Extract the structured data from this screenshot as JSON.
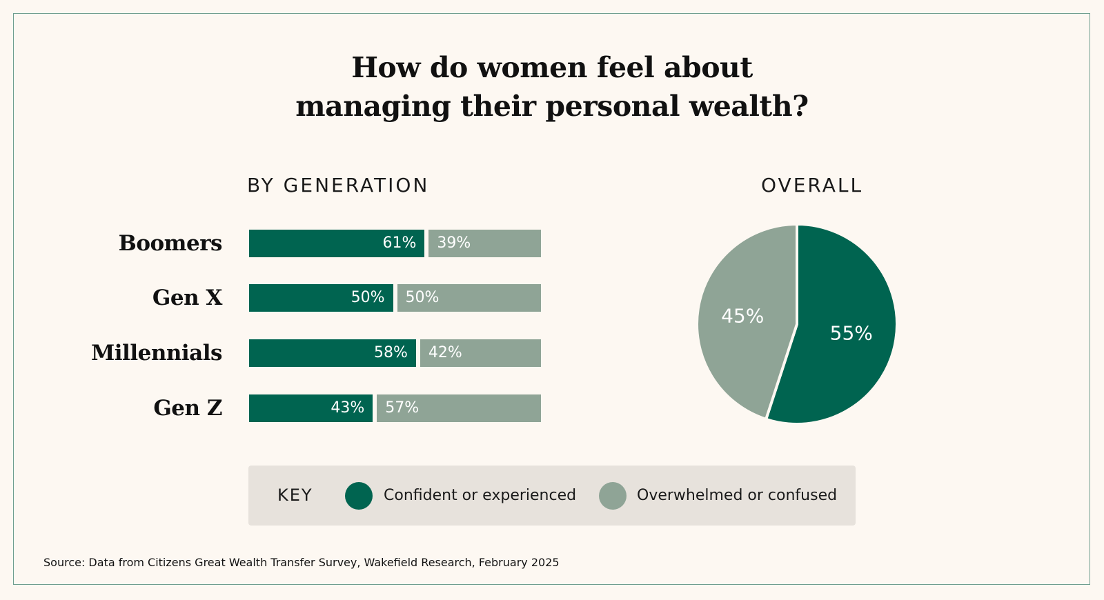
{
  "title_lines": [
    "How do women feel about",
    "managing their personal wealth?"
  ],
  "sections": {
    "by_generation": "BY GENERATION",
    "overall": "OVERALL"
  },
  "colors": {
    "confident": "#006450",
    "overwhelmed": "#8fa496",
    "frame": "#6f9e8f",
    "key_bg": "#e7e2dc",
    "background": "#fdf8f2"
  },
  "chart_data": [
    {
      "type": "bar",
      "orientation": "horizontal-stacked",
      "title": "BY GENERATION",
      "categories": [
        "Boomers",
        "Gen X",
        "Millennials",
        "Gen Z"
      ],
      "series": [
        {
          "name": "Confident or experienced",
          "values": [
            61,
            50,
            58,
            43
          ],
          "labels": [
            "61%",
            "50%",
            "58%",
            "43%"
          ]
        },
        {
          "name": "Overwhelmed or confused",
          "values": [
            39,
            50,
            42,
            57
          ],
          "labels": [
            "39%",
            "50%",
            "42%",
            "57%"
          ]
        }
      ]
    },
    {
      "type": "pie",
      "title": "OVERALL",
      "slices": [
        {
          "name": "Confident or experienced",
          "value": 55,
          "label": "55%"
        },
        {
          "name": "Overwhelmed or confused",
          "value": 45,
          "label": "45%"
        }
      ]
    }
  ],
  "key": {
    "title": "KEY",
    "items": [
      {
        "label": "Confident or experienced"
      },
      {
        "label": "Overwhelmed or confused"
      }
    ]
  },
  "source": "Source: Data from Citizens Great Wealth Transfer Survey, Wakefield Research, February 2025"
}
